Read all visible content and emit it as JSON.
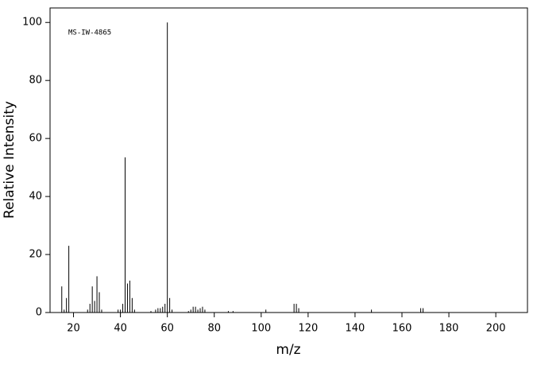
{
  "chart_data": {
    "type": "stem",
    "annotation": "MS-IW-4865",
    "x_label": "m/z",
    "y_label": "Relative Intensity",
    "x": [
      15,
      16,
      17,
      18,
      26,
      27,
      28,
      29,
      30,
      31,
      32,
      39,
      40,
      41,
      42,
      43,
      44,
      45,
      46,
      53,
      55,
      56,
      57,
      58,
      59,
      60,
      61,
      62,
      69,
      70,
      71,
      72,
      73,
      74,
      75,
      76,
      86,
      88,
      102,
      114,
      115,
      116,
      147,
      168,
      169
    ],
    "values": [
      9,
      1,
      5,
      23,
      1,
      3,
      9,
      4,
      12.5,
      7,
      1,
      1,
      1,
      3,
      53.5,
      10,
      11,
      5,
      1,
      0.5,
      1,
      1.5,
      1.5,
      2,
      3,
      100,
      5,
      1,
      0.5,
      1,
      2,
      2,
      1,
      1.5,
      2,
      1,
      0.5,
      0.5,
      1,
      3,
      3,
      1.5,
      1,
      1.5,
      1.5
    ],
    "color": "#000000",
    "xlim": [
      10,
      213.5
    ],
    "ylim": [
      0,
      105
    ],
    "xticks": [
      20,
      40,
      60,
      80,
      100,
      120,
      140,
      160,
      180,
      200
    ],
    "yticks": [
      0,
      20,
      40,
      60,
      80,
      100
    ]
  }
}
